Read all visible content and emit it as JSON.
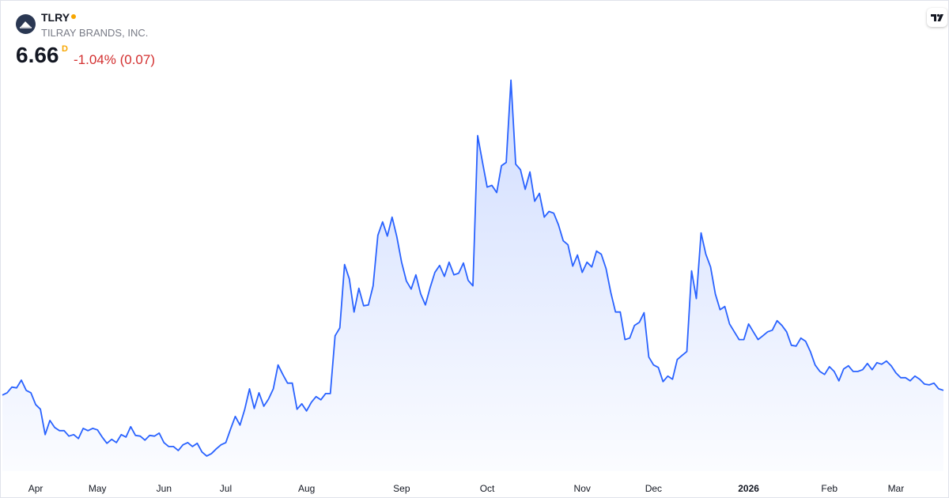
{
  "header": {
    "symbol": "TLRY",
    "company": "TILRAY BRANDS, INC.",
    "price": 6.66,
    "interval": "D",
    "change": "-1.04% (0.07)"
  },
  "chart_data": {
    "type": "area",
    "color": "#2962ff",
    "ylim": [
      2.6,
      23.4
    ],
    "categories": [
      null,
      null,
      null,
      null,
      null,
      null,
      null,
      "Apr",
      null,
      null,
      null,
      null,
      null,
      null,
      null,
      null,
      null,
      null,
      null,
      null,
      "May",
      null,
      null,
      null,
      null,
      null,
      null,
      null,
      null,
      null,
      null,
      null,
      null,
      null,
      "Jun",
      null,
      null,
      null,
      null,
      null,
      null,
      null,
      null,
      null,
      null,
      null,
      null,
      "Jul",
      null,
      null,
      null,
      null,
      null,
      null,
      null,
      null,
      null,
      null,
      null,
      null,
      null,
      null,
      null,
      null,
      "Aug",
      null,
      null,
      null,
      null,
      null,
      null,
      null,
      null,
      null,
      null,
      null,
      null,
      null,
      null,
      null,
      null,
      null,
      null,
      null,
      "Sep",
      null,
      null,
      null,
      null,
      null,
      null,
      null,
      null,
      null,
      null,
      null,
      null,
      null,
      null,
      null,
      null,
      null,
      "Oct",
      null,
      null,
      null,
      null,
      null,
      null,
      null,
      null,
      null,
      null,
      null,
      null,
      null,
      null,
      null,
      null,
      null,
      null,
      null,
      "Nov",
      null,
      null,
      null,
      null,
      null,
      null,
      null,
      null,
      null,
      null,
      null,
      null,
      null,
      null,
      "Dec",
      null,
      null,
      null,
      null,
      null,
      null,
      null,
      null,
      null,
      null,
      null,
      null,
      null,
      null,
      null,
      null,
      null,
      null,
      null,
      "2026",
      null,
      null,
      null,
      null,
      null,
      null,
      null,
      null,
      null,
      null,
      null,
      null,
      null,
      null,
      null,
      null,
      "Feb",
      null,
      null,
      null,
      null,
      null,
      null,
      null,
      null,
      null,
      null,
      null,
      null,
      null,
      "Mar",
      null,
      null,
      null,
      null,
      null,
      null,
      null,
      null,
      null,
      null
    ],
    "values": [
      6.41,
      6.53,
      6.83,
      6.79,
      7.2,
      6.66,
      6.53,
      5.91,
      5.66,
      4.32,
      5.07,
      4.7,
      4.53,
      4.53,
      4.24,
      4.32,
      4.11,
      4.65,
      4.53,
      4.65,
      4.57,
      4.19,
      3.86,
      4.07,
      3.9,
      4.32,
      4.19,
      4.74,
      4.28,
      4.24,
      4.03,
      4.28,
      4.24,
      4.4,
      3.9,
      3.69,
      3.69,
      3.48,
      3.78,
      3.9,
      3.69,
      3.86,
      3.4,
      3.19,
      3.32,
      3.57,
      3.78,
      3.9,
      4.61,
      5.28,
      4.82,
      5.66,
      6.74,
      5.7,
      6.53,
      5.82,
      6.2,
      6.74,
      8.0,
      7.5,
      7.04,
      7.04,
      5.66,
      5.95,
      5.57,
      6.03,
      6.33,
      6.16,
      6.49,
      6.49,
      9.54,
      9.96,
      13.31,
      12.55,
      10.8,
      12.05,
      11.13,
      11.17,
      12.18,
      14.85,
      15.56,
      14.81,
      15.81,
      14.77,
      13.43,
      12.43,
      12.01,
      12.76,
      11.76,
      11.17,
      12.09,
      12.89,
      13.26,
      12.68,
      13.43,
      12.76,
      12.85,
      13.39,
      12.47,
      12.18,
      20.12,
      18.74,
      17.4,
      17.49,
      17.11,
      18.53,
      18.7,
      23.05,
      18.61,
      18.32,
      17.28,
      18.2,
      16.65,
      17.07,
      15.81,
      16.11,
      16.02,
      15.4,
      14.56,
      14.35,
      13.22,
      13.81,
      12.89,
      13.43,
      13.18,
      14.02,
      13.85,
      13.1,
      11.84,
      10.8,
      10.8,
      9.34,
      9.42,
      10.09,
      10.25,
      10.76,
      8.42,
      8.0,
      7.87,
      7.12,
      7.41,
      7.25,
      8.29,
      8.5,
      8.71,
      12.97,
      11.51,
      14.98,
      13.85,
      13.18,
      11.76,
      10.92,
      11.09,
      10.17,
      9.75,
      9.34,
      9.34,
      10.17,
      9.75,
      9.34,
      9.54,
      9.75,
      9.84,
      10.34,
      10.09,
      9.75,
      9.04,
      9.0,
      9.42,
      9.25,
      8.71,
      8.0,
      7.66,
      7.5,
      7.91,
      7.66,
      7.16,
      7.79,
      7.96,
      7.66,
      7.66,
      7.75,
      8.08,
      7.75,
      8.12,
      8.04,
      8.21,
      7.96,
      7.58,
      7.33,
      7.33,
      7.16,
      7.41,
      7.25,
      6.99,
      6.95,
      7.04,
      6.74,
      6.66
    ]
  }
}
